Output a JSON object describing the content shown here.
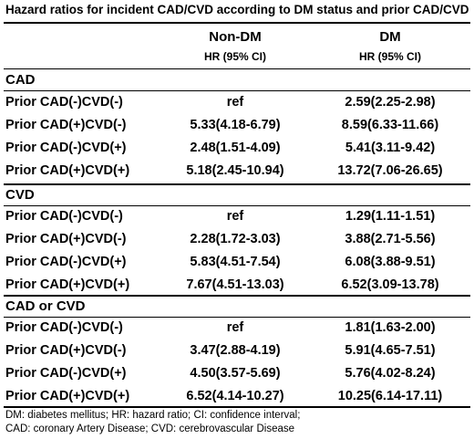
{
  "title": "Hazard ratios for incident CAD/CVD according to DM status and prior CAD/CVD",
  "columns": [
    {
      "name": "Non-DM",
      "sub": "HR (95% CI)"
    },
    {
      "name": "DM",
      "sub": "HR (95% CI)"
    }
  ],
  "sections": [
    {
      "name": "CAD",
      "rows": [
        {
          "label": "Prior CAD(-)CVD(-)",
          "nondm": "ref",
          "dm": "2.59(2.25-2.98)"
        },
        {
          "label": "Prior CAD(+)CVD(-)",
          "nondm": "5.33(4.18-6.79)",
          "dm": "8.59(6.33-11.66)"
        },
        {
          "label": "Prior CAD(-)CVD(+)",
          "nondm": "2.48(1.51-4.09)",
          "dm": "5.41(3.11-9.42)"
        },
        {
          "label": "Prior CAD(+)CVD(+)",
          "nondm": "5.18(2.45-10.94)",
          "dm": "13.72(7.06-26.65)"
        }
      ]
    },
    {
      "name": "CVD",
      "rows": [
        {
          "label": "Prior CAD(-)CVD(-)",
          "nondm": "ref",
          "dm": "1.29(1.11-1.51)"
        },
        {
          "label": "Prior CAD(+)CVD(-)",
          "nondm": "2.28(1.72-3.03)",
          "dm": "3.88(2.71-5.56)"
        },
        {
          "label": "Prior CAD(-)CVD(+)",
          "nondm": "5.83(4.51-7.54)",
          "dm": "6.08(3.88-9.51)"
        },
        {
          "label": "Prior CAD(+)CVD(+)",
          "nondm": "7.67(4.51-13.03)",
          "dm": "6.52(3.09-13.78)"
        }
      ]
    },
    {
      "name": "CAD or CVD",
      "rows": [
        {
          "label": "Prior CAD(-)CVD(-)",
          "nondm": "ref",
          "dm": "1.81(1.63-2.00)"
        },
        {
          "label": "Prior CAD(+)CVD(-)",
          "nondm": "3.47(2.88-4.19)",
          "dm": "5.91(4.65-7.51)"
        },
        {
          "label": "Prior CAD(-)CVD(+)",
          "nondm": "4.50(3.57-5.69)",
          "dm": "5.76(4.02-8.24)"
        },
        {
          "label": "Prior CAD(+)CVD(+)",
          "nondm": "6.52(4.14-10.27)",
          "dm": "10.25(6.14-17.11)"
        }
      ]
    }
  ],
  "footnotes": [
    "DM: diabetes mellitus; HR: hazard ratio; CI: confidence interval;",
    "CAD: coronary Artery Disease; CVD: cerebrovascular Disease"
  ]
}
